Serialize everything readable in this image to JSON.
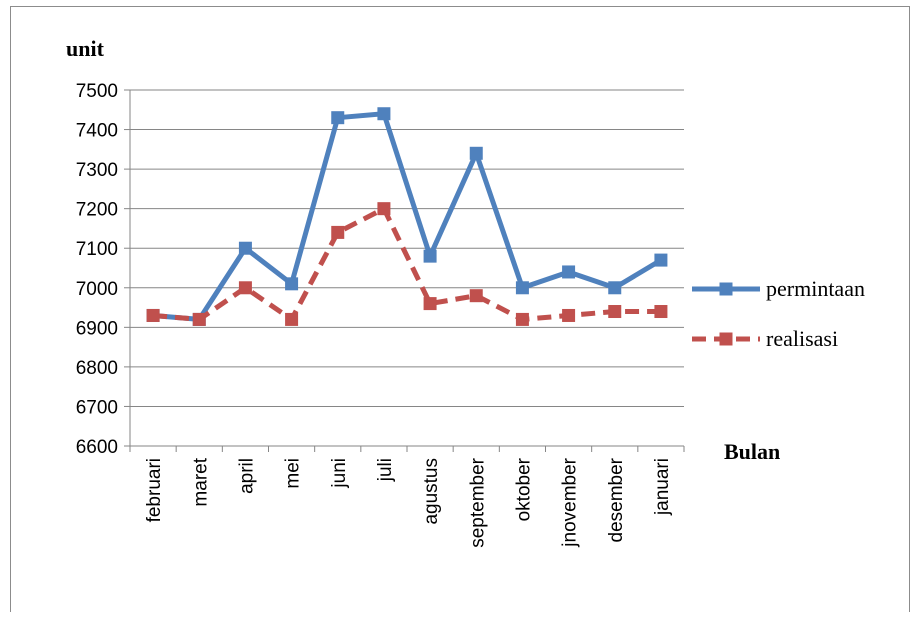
{
  "chart_data": {
    "type": "line",
    "ylabel": "unit",
    "xlabel": "Bulan",
    "ylim": [
      6600,
      7500
    ],
    "ytick_step": 100,
    "grid": true,
    "legend_position": "right",
    "categories": [
      "februari",
      "maret",
      "april",
      "mei",
      "juni",
      "juli",
      "agustus",
      "september",
      "oktober",
      "jnovember",
      "desember",
      "januari"
    ],
    "series": [
      {
        "name": "permintaan",
        "color": "#4f81bd",
        "line_style": "solid",
        "marker": "square",
        "values": [
          6930,
          6920,
          7100,
          7010,
          7430,
          7440,
          7080,
          7340,
          7000,
          7040,
          7000,
          7070
        ]
      },
      {
        "name": "realisasi",
        "color": "#c0504d",
        "line_style": "dashed",
        "marker": "square",
        "values": [
          6930,
          6920,
          7000,
          6920,
          7140,
          7200,
          6960,
          6980,
          6920,
          6930,
          6940,
          6940
        ]
      }
    ]
  }
}
